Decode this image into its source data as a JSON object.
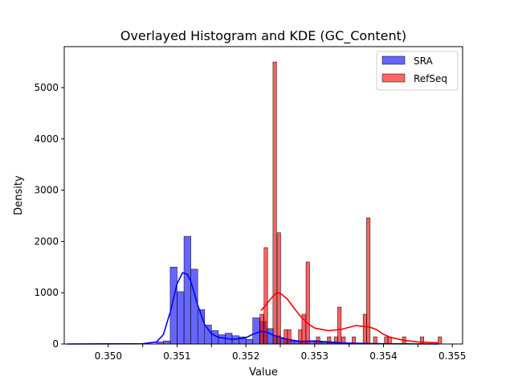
{
  "chart_data": {
    "type": "histogram",
    "title": "Overlayed Histogram and KDE (GC_Content)",
    "xlabel": "Value",
    "ylabel": "Density",
    "xlim": [
      0.34936,
      0.35515
    ],
    "ylim": [
      0,
      5800
    ],
    "xticks": [
      0.35,
      0.3505,
      0.351,
      0.3515,
      0.352,
      0.3525,
      0.353,
      0.3535,
      0.354,
      0.3545,
      0.355
    ],
    "xtick_labels": [
      "0.350",
      "",
      "0.351",
      "",
      "0.352",
      "",
      "0.353",
      "",
      "0.354",
      "",
      "0.355"
    ],
    "yticks": [
      0,
      1000,
      2000,
      3000,
      4000,
      5000
    ],
    "ytick_labels": [
      "0",
      "1000",
      "2000",
      "3000",
      "4000",
      "5000"
    ],
    "legend_position": "top-right",
    "series": [
      {
        "name": "SRA",
        "color": "#0000ff",
        "bin_width": 0.0001,
        "bins": [
          {
            "x": 0.35075,
            "y": 40
          },
          {
            "x": 0.35085,
            "y": 60
          },
          {
            "x": 0.35095,
            "y": 1500
          },
          {
            "x": 0.35105,
            "y": 1020
          },
          {
            "x": 0.35115,
            "y": 2100
          },
          {
            "x": 0.35125,
            "y": 1460
          },
          {
            "x": 0.35135,
            "y": 670
          },
          {
            "x": 0.35145,
            "y": 370
          },
          {
            "x": 0.35155,
            "y": 260
          },
          {
            "x": 0.35165,
            "y": 180
          },
          {
            "x": 0.35175,
            "y": 210
          },
          {
            "x": 0.35185,
            "y": 160
          },
          {
            "x": 0.35195,
            "y": 140
          },
          {
            "x": 0.35205,
            "y": 90
          },
          {
            "x": 0.35215,
            "y": 510
          },
          {
            "x": 0.35225,
            "y": 440
          },
          {
            "x": 0.35235,
            "y": 300
          },
          {
            "x": 0.35245,
            "y": 160
          },
          {
            "x": 0.35255,
            "y": 100
          },
          {
            "x": 0.35265,
            "y": 60
          },
          {
            "x": 0.35275,
            "y": 50
          },
          {
            "x": 0.35285,
            "y": 40
          },
          {
            "x": 0.35295,
            "y": 60
          },
          {
            "x": 0.35305,
            "y": 40
          },
          {
            "x": 0.35315,
            "y": 30
          },
          {
            "x": 0.35325,
            "y": 20
          },
          {
            "x": 0.35335,
            "y": 10
          }
        ],
        "kde": [
          [
            0.3494,
            0
          ],
          [
            0.3505,
            5
          ],
          [
            0.3507,
            40
          ],
          [
            0.3508,
            180
          ],
          [
            0.3509,
            620
          ],
          [
            0.351,
            1180
          ],
          [
            0.35108,
            1390
          ],
          [
            0.35115,
            1360
          ],
          [
            0.3512,
            1220
          ],
          [
            0.3513,
            760
          ],
          [
            0.3514,
            380
          ],
          [
            0.3515,
            200
          ],
          [
            0.3516,
            130
          ],
          [
            0.3518,
            90
          ],
          [
            0.352,
            120
          ],
          [
            0.3521,
            190
          ],
          [
            0.35222,
            245
          ],
          [
            0.3523,
            230
          ],
          [
            0.3524,
            170
          ],
          [
            0.3526,
            90
          ],
          [
            0.3528,
            50
          ],
          [
            0.353,
            60
          ],
          [
            0.3532,
            40
          ],
          [
            0.3534,
            20
          ],
          [
            0.3537,
            10
          ],
          [
            0.354,
            5
          ],
          [
            0.3545,
            2
          ],
          [
            0.3548,
            0
          ]
        ]
      },
      {
        "name": "RefSeq",
        "color": "#ff0000",
        "bin_width": 5.2e-05,
        "bins": [
          {
            "x": 0.35223,
            "y": 580
          },
          {
            "x": 0.35229,
            "y": 1880
          },
          {
            "x": 0.35242,
            "y": 5500
          },
          {
            "x": 0.35248,
            "y": 2170
          },
          {
            "x": 0.35258,
            "y": 280
          },
          {
            "x": 0.35263,
            "y": 280
          },
          {
            "x": 0.35279,
            "y": 280
          },
          {
            "x": 0.35284,
            "y": 580
          },
          {
            "x": 0.3529,
            "y": 1600
          },
          {
            "x": 0.35305,
            "y": 140
          },
          {
            "x": 0.35321,
            "y": 140
          },
          {
            "x": 0.35331,
            "y": 140
          },
          {
            "x": 0.35336,
            "y": 720
          },
          {
            "x": 0.35342,
            "y": 140
          },
          {
            "x": 0.35357,
            "y": 140
          },
          {
            "x": 0.35373,
            "y": 580
          },
          {
            "x": 0.35378,
            "y": 2460
          },
          {
            "x": 0.35388,
            "y": 140
          },
          {
            "x": 0.35404,
            "y": 140
          },
          {
            "x": 0.35409,
            "y": 140
          },
          {
            "x": 0.3543,
            "y": 140
          },
          {
            "x": 0.35456,
            "y": 140
          },
          {
            "x": 0.35482,
            "y": 140
          }
        ],
        "kde": [
          [
            0.35222,
            650
          ],
          [
            0.3523,
            780
          ],
          [
            0.3524,
            940
          ],
          [
            0.35245,
            1000
          ],
          [
            0.3525,
            990
          ],
          [
            0.3526,
            880
          ],
          [
            0.3527,
            700
          ],
          [
            0.3528,
            530
          ],
          [
            0.3529,
            400
          ],
          [
            0.353,
            310
          ],
          [
            0.3532,
            260
          ],
          [
            0.3534,
            290
          ],
          [
            0.3536,
            360
          ],
          [
            0.3538,
            330
          ],
          [
            0.3539,
            280
          ],
          [
            0.354,
            190
          ],
          [
            0.3541,
            130
          ],
          [
            0.3543,
            70
          ],
          [
            0.3545,
            40
          ],
          [
            0.3548,
            22
          ]
        ]
      }
    ]
  }
}
